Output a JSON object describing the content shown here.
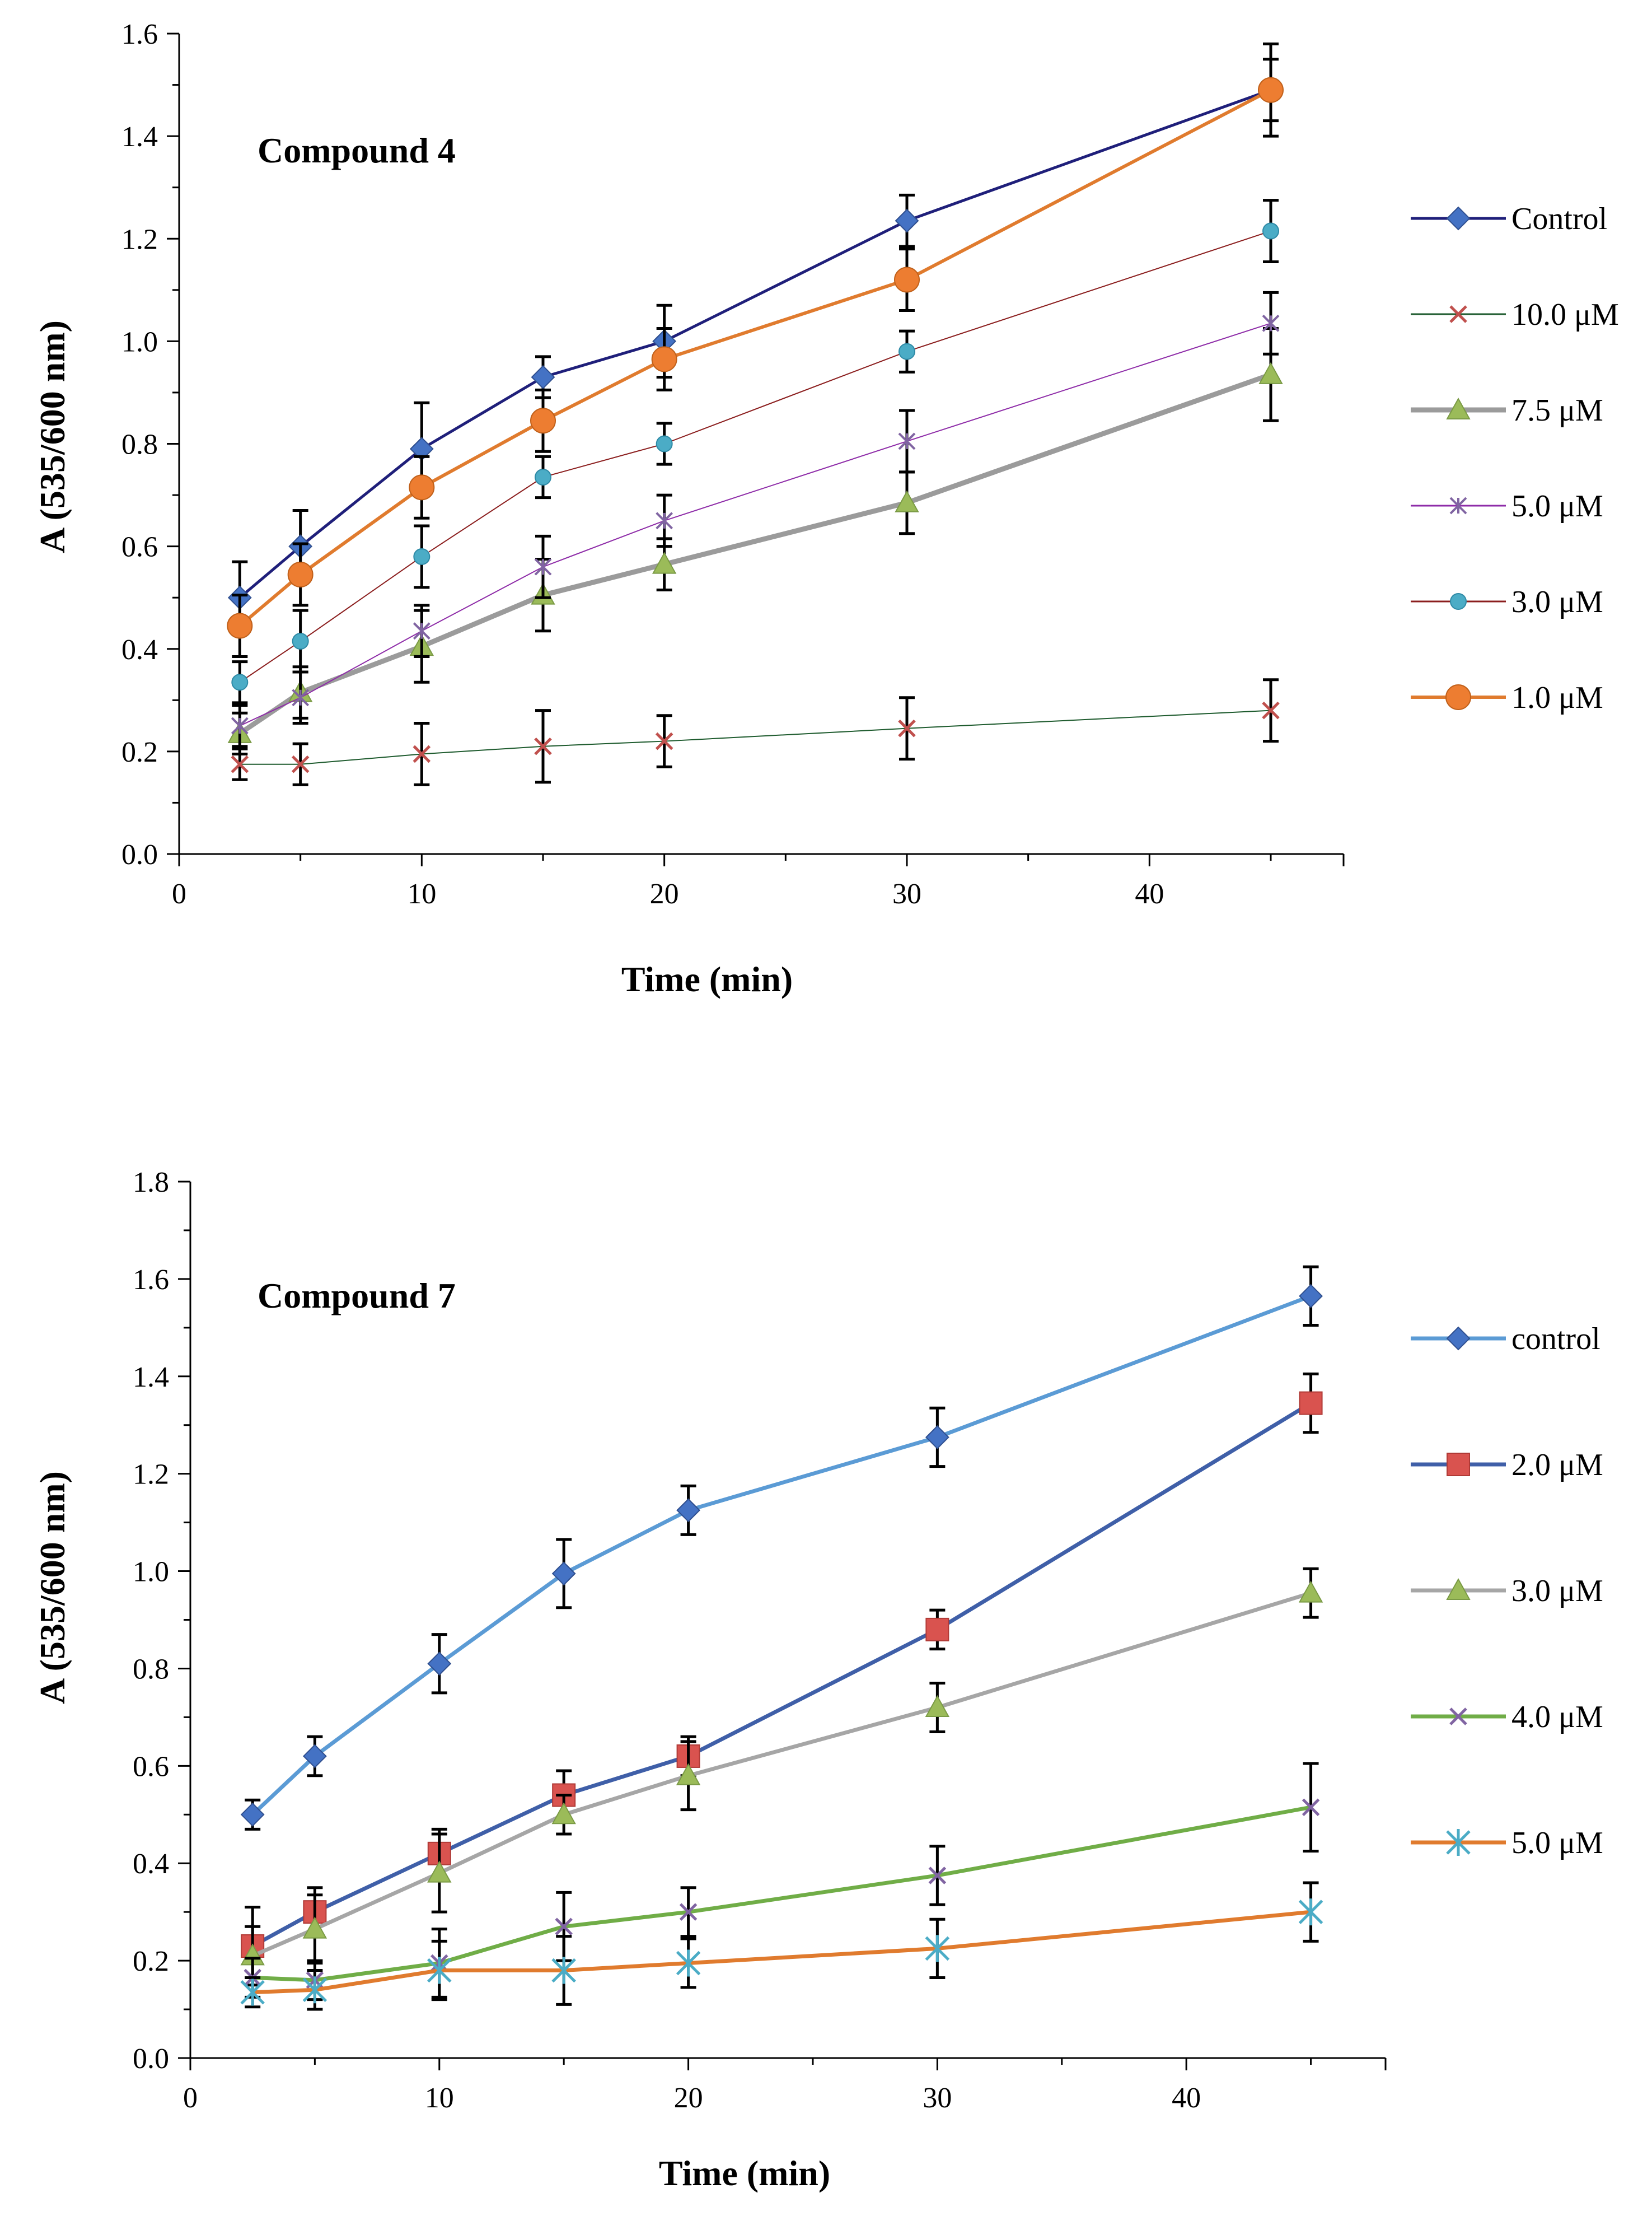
{
  "chart_data": [
    {
      "type": "line",
      "title": "Compound 4",
      "xlabel": "Time (min)",
      "ylabel": "A (535/600 nm)",
      "xlim": [
        0,
        48
      ],
      "ylim": [
        0,
        1.6
      ],
      "xticks": [
        0,
        10,
        20,
        30,
        40
      ],
      "xtick_labels": [
        "0",
        "10",
        "20",
        "30",
        "40"
      ],
      "yticks": [
        0,
        0.2,
        0.4,
        0.6,
        0.8,
        1.0,
        1.2,
        1.4,
        1.6
      ],
      "ytick_labels": [
        "0.0",
        "0.2",
        "0.4",
        "0.6",
        "0.8",
        "1.0",
        "1.2",
        "1.4",
        "1.6"
      ],
      "grid": false,
      "legend_position": "right",
      "x": [
        2.5,
        5,
        10,
        15,
        20,
        30,
        45
      ],
      "series": [
        {
          "name": "Control",
          "values": [
            0.5,
            0.6,
            0.79,
            0.93,
            1.0,
            1.235,
            1.49
          ],
          "errors": [
            0.07,
            0.07,
            0.09,
            0.04,
            0.07,
            0.05,
            0.09
          ],
          "color": "#1F1F7A",
          "marker": "diamond",
          "marker_color": "#4472C4",
          "width": 5
        },
        {
          "name": "10.0 μM",
          "values": [
            0.175,
            0.175,
            0.195,
            0.21,
            0.22,
            0.245,
            0.28
          ],
          "errors": [
            0.03,
            0.04,
            0.06,
            0.07,
            0.05,
            0.06,
            0.06
          ],
          "color": "#1E5B2E",
          "marker": "x",
          "marker_color": "#C0504D",
          "width": 2
        },
        {
          "name": "7.5 μM",
          "values": [
            0.235,
            0.315,
            0.405,
            0.505,
            0.565,
            0.685,
            0.935
          ],
          "errors": [
            0.04,
            0.05,
            0.07,
            0.07,
            0.05,
            0.06,
            0.09
          ],
          "color": "#9B9B9B",
          "marker": "triangle",
          "marker_color": "#9BBB59",
          "width": 9
        },
        {
          "name": "5.0 μM",
          "values": [
            0.25,
            0.305,
            0.435,
            0.56,
            0.65,
            0.805,
            1.035
          ],
          "errors": [
            0.04,
            0.05,
            0.05,
            0.06,
            0.05,
            0.06,
            0.06
          ],
          "color": "#8E2CA8",
          "marker": "star",
          "marker_color": "#8064A2",
          "width": 2
        },
        {
          "name": "3.0 μM",
          "values": [
            0.335,
            0.415,
            0.58,
            0.735,
            0.8,
            0.98,
            1.215
          ],
          "errors": [
            0.04,
            0.06,
            0.06,
            0.04,
            0.04,
            0.04,
            0.06
          ],
          "color": "#8B1E1E",
          "marker": "circle",
          "marker_color": "#4BACC6",
          "width": 2
        },
        {
          "name": "1.0 μM",
          "values": [
            0.445,
            0.545,
            0.715,
            0.845,
            0.965,
            1.12,
            1.49
          ],
          "errors": [
            0.06,
            0.06,
            0.06,
            0.06,
            0.06,
            0.06,
            0.06
          ],
          "color": "#E07B2E",
          "marker": "circle",
          "marker_color": "#ED7D31",
          "width": 6
        }
      ]
    },
    {
      "type": "line",
      "title": "Compound 7",
      "xlabel": "Time (min)",
      "ylabel": "A (535/600 nm)",
      "xlim": [
        0,
        48
      ],
      "ylim": [
        0,
        1.8
      ],
      "xticks": [
        0,
        10,
        20,
        30,
        40
      ],
      "xtick_labels": [
        "0",
        "10",
        "20",
        "30",
        "40"
      ],
      "yticks": [
        0,
        0.2,
        0.4,
        0.6,
        0.8,
        1.0,
        1.2,
        1.4,
        1.6,
        1.8
      ],
      "ytick_labels": [
        "0.0",
        "0.2",
        "0.4",
        "0.6",
        "0.8",
        "1.0",
        "1.2",
        "1.4",
        "1.6",
        "1.8"
      ],
      "grid": false,
      "legend_position": "right",
      "x": [
        2.5,
        5,
        10,
        15,
        20,
        30,
        45
      ],
      "series": [
        {
          "name": "control",
          "values": [
            0.5,
            0.62,
            0.81,
            0.995,
            1.125,
            1.275,
            1.565
          ],
          "errors": [
            0.03,
            0.04,
            0.06,
            0.07,
            0.05,
            0.06,
            0.06
          ],
          "color": "#5B9BD5",
          "marker": "diamond",
          "marker_color": "#4472C4",
          "width": 7
        },
        {
          "name": "2.0 μM",
          "values": [
            0.23,
            0.3,
            0.42,
            0.54,
            0.62,
            0.88,
            1.345
          ],
          "errors": [
            0.08,
            0.05,
            0.05,
            0.05,
            0.04,
            0.04,
            0.06
          ],
          "color": "#3F5FA8",
          "marker": "square",
          "marker_color": "#D9534F",
          "width": 7
        },
        {
          "name": "3.0 μM",
          "values": [
            0.21,
            0.265,
            0.38,
            0.5,
            0.58,
            0.72,
            0.955
          ],
          "errors": [
            0.06,
            0.07,
            0.08,
            0.04,
            0.07,
            0.05,
            0.05
          ],
          "color": "#A6A6A6",
          "marker": "triangle",
          "marker_color": "#9BBB59",
          "width": 7
        },
        {
          "name": "4.0 μM",
          "values": [
            0.165,
            0.16,
            0.195,
            0.27,
            0.3,
            0.375,
            0.515
          ],
          "errors": [
            0.04,
            0.04,
            0.07,
            0.07,
            0.05,
            0.06,
            0.09
          ],
          "color": "#70AD47",
          "marker": "x",
          "marker_color": "#8064A2",
          "width": 7
        },
        {
          "name": "5.0 μM",
          "values": [
            0.135,
            0.14,
            0.18,
            0.18,
            0.195,
            0.225,
            0.3
          ],
          "errors": [
            0.03,
            0.04,
            0.06,
            0.07,
            0.05,
            0.06,
            0.06
          ],
          "color": "#E07B2E",
          "marker": "asterisk",
          "marker_color": "#4BACC6",
          "width": 7
        }
      ]
    }
  ]
}
